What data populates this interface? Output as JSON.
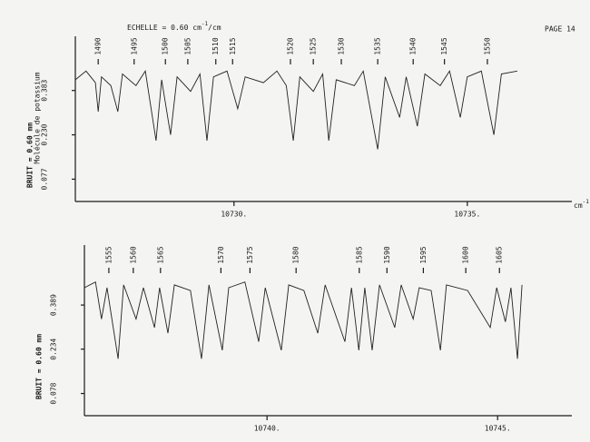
{
  "header": {
    "scale_text": "ECHELLE = 0.60 cm",
    "scale_sup": "-1",
    "scale_unit": "/cm",
    "page": "PAGE 14"
  },
  "chart_data": [
    {
      "type": "line",
      "note": "Molécule de potassium",
      "ylabel": "BRUIT = 0.60 mm",
      "xlabel": "cm",
      "xlabel_sup": "-1",
      "xlim": [
        10726.6,
        10737.24
      ],
      "ylim": [
        0,
        0.57
      ],
      "xticks": [
        {
          "value": 10730,
          "label": "10730."
        },
        {
          "value": 10735,
          "label": "10735."
        }
      ],
      "yticks": [
        0.383,
        {
          "value": 0.23,
          "label": "0.230"
        },
        0.077
      ],
      "color": "#222222",
      "x": [
        10726.6,
        10726.83,
        10727.03,
        10727.09,
        10727.16,
        10727.36,
        10727.51,
        10727.61,
        10727.9,
        10728.1,
        10728.33,
        10728.45,
        10728.64,
        10728.78,
        10729.07,
        10729.27,
        10729.42,
        10729.56,
        10729.85,
        10730.08,
        10730.24,
        10730.63,
        10730.92,
        10731.12,
        10731.27,
        10731.41,
        10731.7,
        10731.9,
        10732.03,
        10732.19,
        10732.58,
        10732.77,
        10733.08,
        10733.24,
        10733.55,
        10733.69,
        10733.93,
        10734.09,
        10734.42,
        10734.62,
        10734.85,
        10735.0,
        10735.3,
        10735.57,
        10735.73,
        10736.07
      ],
      "values": [
        0.42,
        0.45,
        0.41,
        0.31,
        0.43,
        0.4,
        0.31,
        0.44,
        0.4,
        0.45,
        0.21,
        0.42,
        0.23,
        0.43,
        0.38,
        0.44,
        0.21,
        0.43,
        0.45,
        0.32,
        0.43,
        0.41,
        0.45,
        0.4,
        0.21,
        0.43,
        0.38,
        0.44,
        0.21,
        0.42,
        0.4,
        0.45,
        0.18,
        0.43,
        0.29,
        0.43,
        0.26,
        0.44,
        0.4,
        0.45,
        0.29,
        0.43,
        0.45,
        0.23,
        0.44,
        0.45
      ],
      "annotations": [
        {
          "text": "1490",
          "x": 10727.09
        },
        {
          "text": "1495",
          "x": 10727.86
        },
        {
          "text": "1500",
          "x": 10728.53
        },
        {
          "text": "1505",
          "x": 10729.01
        },
        {
          "text": "1510",
          "x": 10729.61
        },
        {
          "text": "1515",
          "x": 10729.97
        },
        {
          "text": "1520",
          "x": 10731.21
        },
        {
          "text": "1525",
          "x": 10731.7
        },
        {
          "text": "1530",
          "x": 10732.3
        },
        {
          "text": "1535",
          "x": 10733.08
        },
        {
          "text": "1540",
          "x": 10733.84
        },
        {
          "text": "1545",
          "x": 10734.51
        },
        {
          "text": "1550",
          "x": 10735.43
        }
      ]
    },
    {
      "type": "line",
      "ylabel": "BRUIT = 0.60 mm",
      "xlim": [
        10736.04,
        10746.61
      ],
      "ylim": [
        0,
        0.6
      ],
      "xticks": [
        {
          "value": 10740,
          "label": "10740."
        },
        {
          "value": 10745,
          "label": "10745."
        }
      ],
      "yticks": [
        0.389,
        0.234,
        0.078
      ],
      "color": "#222222",
      "x": [
        10736.04,
        10736.28,
        10736.41,
        10736.53,
        10736.77,
        10736.89,
        10737.16,
        10737.32,
        10737.56,
        10737.67,
        10737.85,
        10737.99,
        10738.34,
        10738.58,
        10738.74,
        10739.03,
        10739.17,
        10739.52,
        10739.82,
        10739.96,
        10740.31,
        10740.47,
        10740.8,
        10741.1,
        10741.26,
        10741.69,
        10741.83,
        10741.99,
        10742.12,
        10742.28,
        10742.44,
        10742.77,
        10742.91,
        10743.17,
        10743.3,
        10743.56,
        10743.76,
        10743.89,
        10744.35,
        10744.84,
        10744.98,
        10745.17,
        10745.29,
        10745.43,
        10745.53
      ],
      "values": [
        0.45,
        0.47,
        0.34,
        0.45,
        0.2,
        0.46,
        0.34,
        0.45,
        0.31,
        0.45,
        0.29,
        0.46,
        0.44,
        0.2,
        0.46,
        0.23,
        0.45,
        0.47,
        0.26,
        0.45,
        0.23,
        0.46,
        0.44,
        0.29,
        0.46,
        0.26,
        0.45,
        0.23,
        0.45,
        0.23,
        0.46,
        0.31,
        0.46,
        0.34,
        0.45,
        0.44,
        0.23,
        0.46,
        0.44,
        0.31,
        0.45,
        0.33,
        0.45,
        0.2,
        0.46
      ],
      "annotations": [
        {
          "text": "1555",
          "x": 10736.57
        },
        {
          "text": "1560",
          "x": 10737.1
        },
        {
          "text": "1565",
          "x": 10737.69
        },
        {
          "text": "1570",
          "x": 10739.0
        },
        {
          "text": "1575",
          "x": 10739.63
        },
        {
          "text": "1580",
          "x": 10740.63
        },
        {
          "text": "1585",
          "x": 10742.0
        },
        {
          "text": "1590",
          "x": 10742.6
        },
        {
          "text": "1595",
          "x": 10743.39
        },
        {
          "text": "1600",
          "x": 10744.31
        },
        {
          "text": "1605",
          "x": 10745.04
        }
      ]
    }
  ]
}
